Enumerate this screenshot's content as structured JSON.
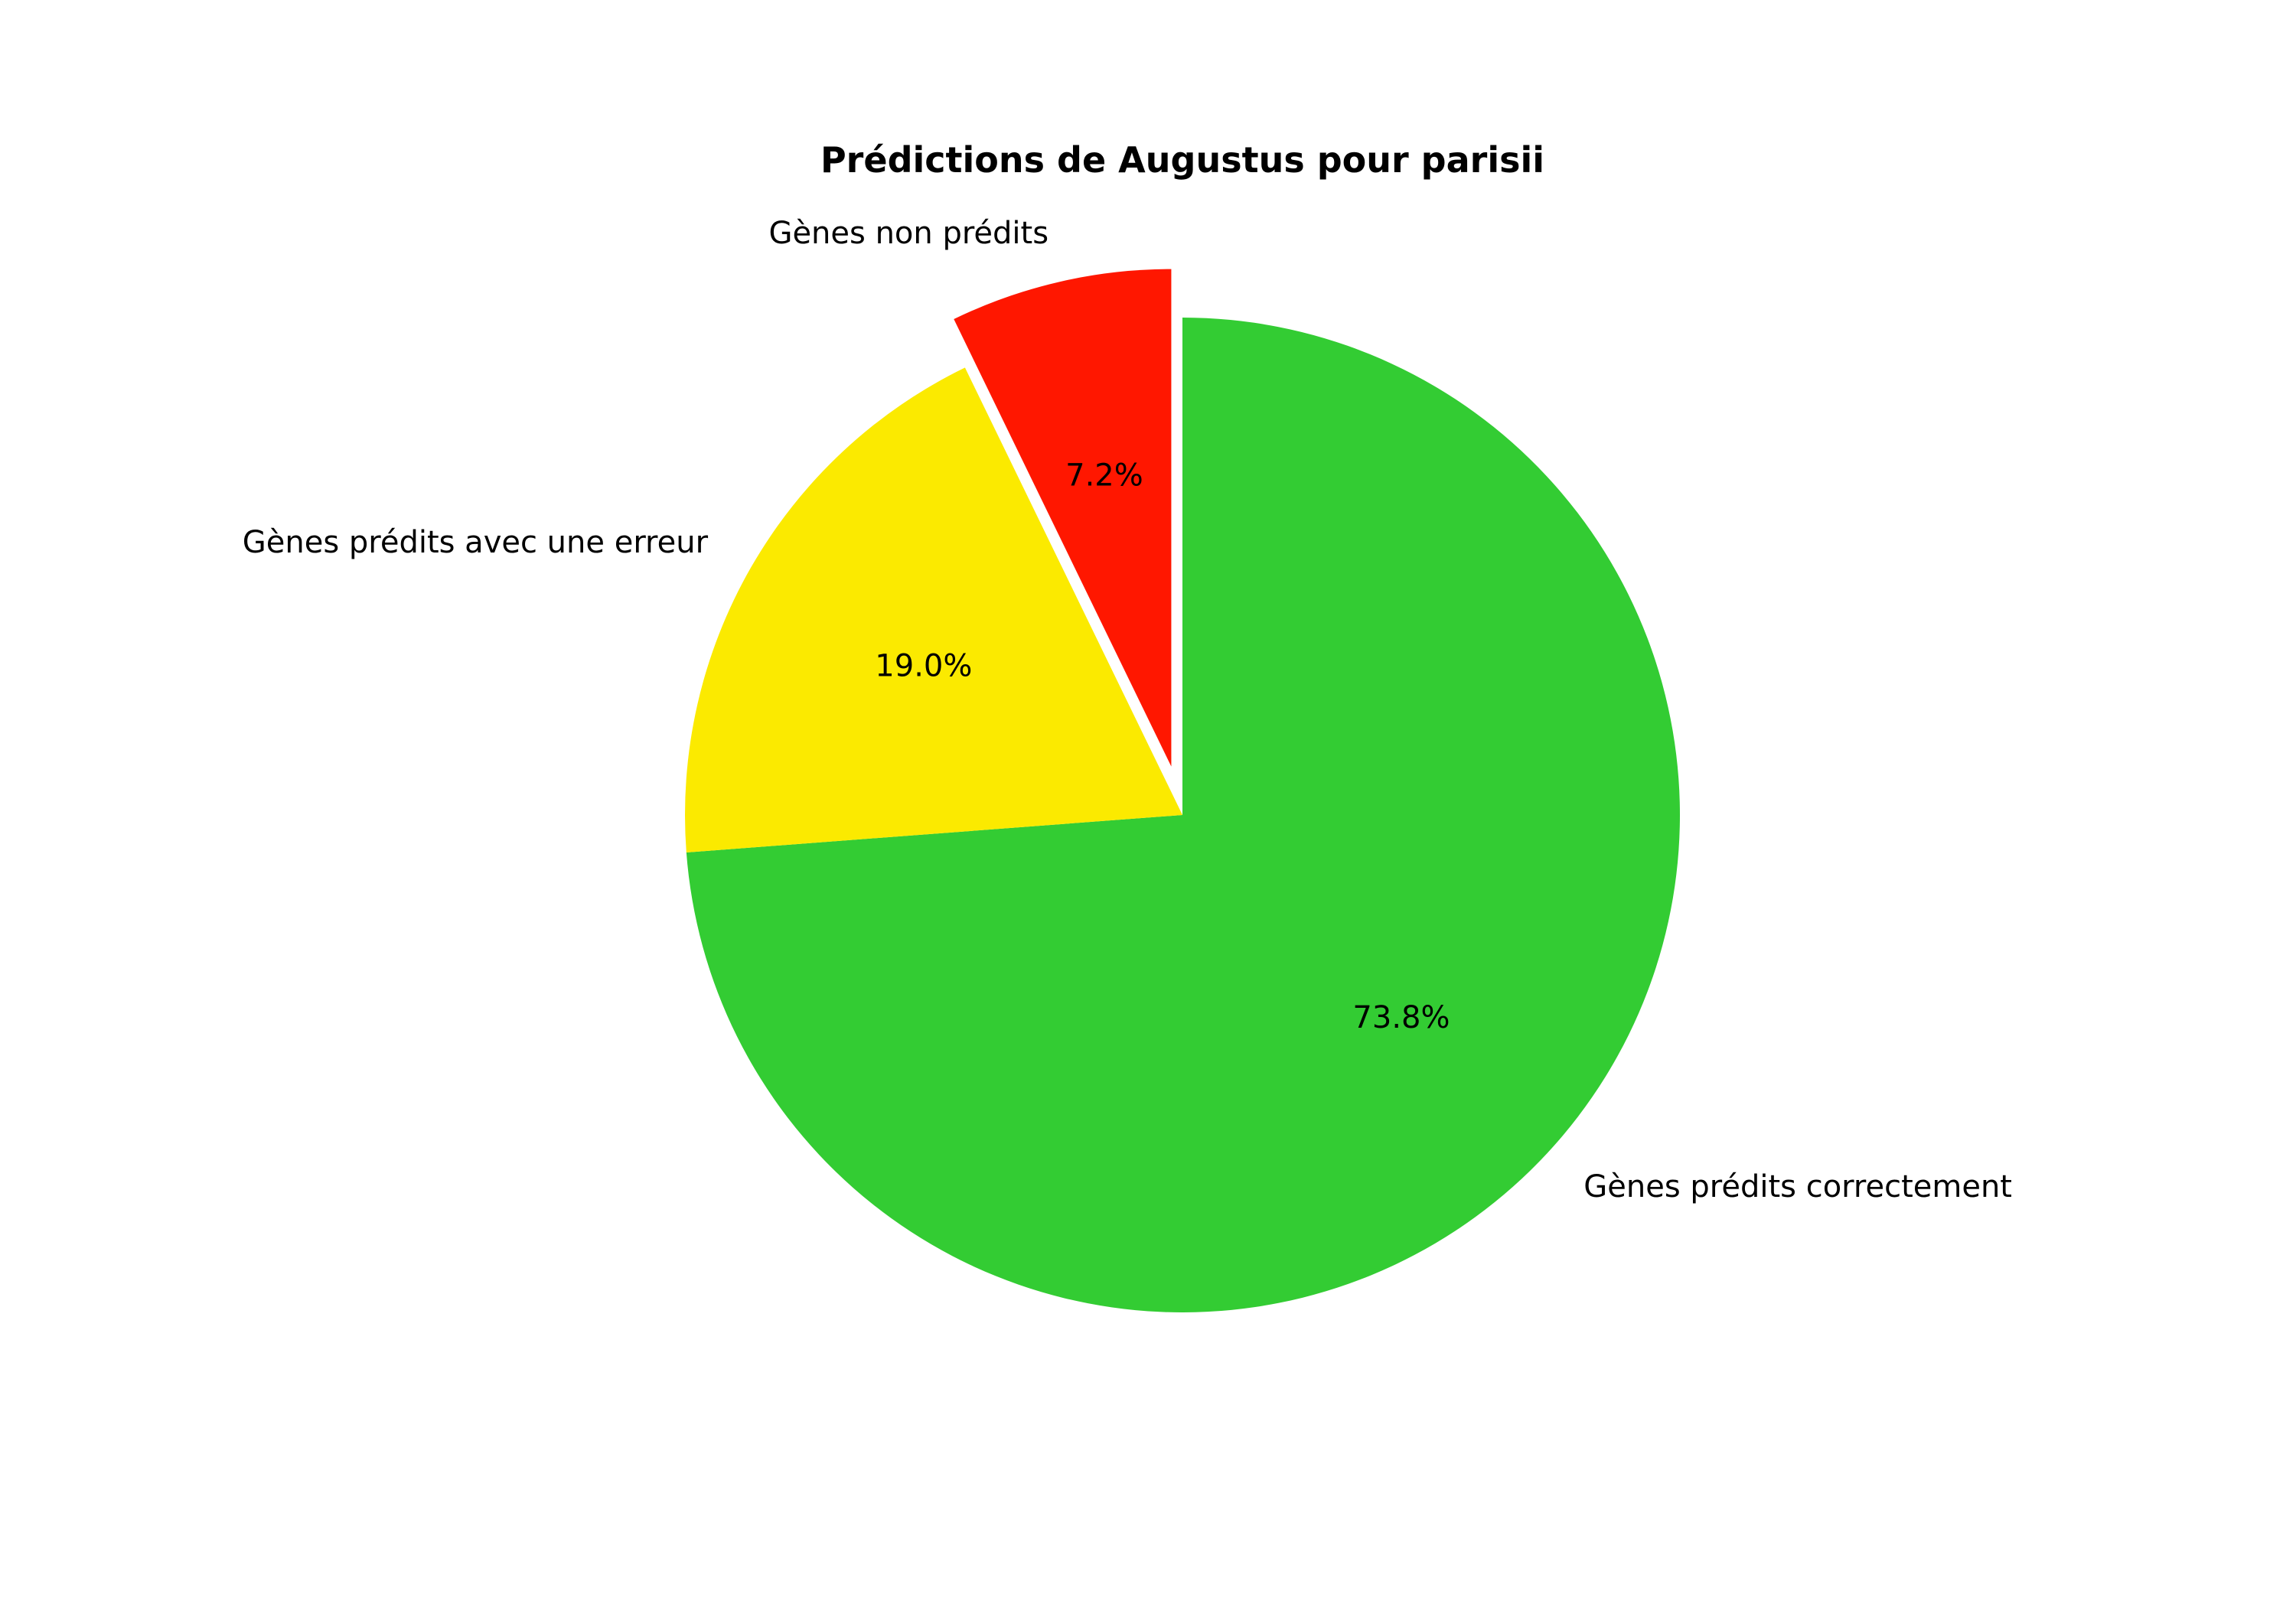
{
  "chart_data": {
    "type": "pie",
    "title": "Prédictions de Augustus pour parisii",
    "start_angle_deg": 90,
    "direction": "clockwise",
    "slices": [
      {
        "label": "Gènes prédits correctement",
        "value": 73.8,
        "pct_text": "73.8%",
        "color": "#33cc33",
        "exploded": false
      },
      {
        "label": "Gènes prédits avec une erreur",
        "value": 19.0,
        "pct_text": "19.0%",
        "color": "#fbea00",
        "exploded": false
      },
      {
        "label": "Gènes non prédits",
        "value": 7.2,
        "pct_text": "7.2%",
        "color": "#ff1700",
        "exploded": true
      }
    ]
  }
}
